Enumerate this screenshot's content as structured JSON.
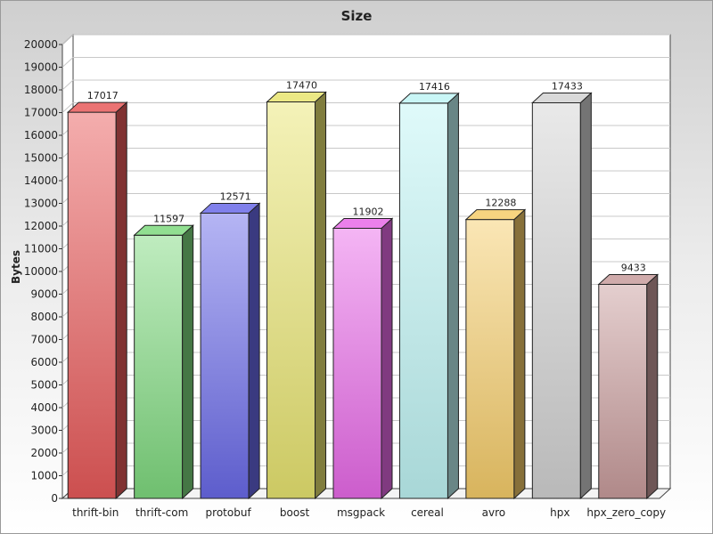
{
  "chart_data": {
    "type": "bar",
    "title": "Size",
    "xlabel": "",
    "ylabel": "Bytes",
    "ylim": [
      0,
      20000
    ],
    "ytick_step": 1000,
    "grid": true,
    "legend": "none",
    "style": "3d-bar",
    "categories": [
      "thrift-bin",
      "thrift-com",
      "protobuf",
      "boost",
      "msgpack",
      "cereal",
      "avro",
      "hpx",
      "hpx_zero_copy"
    ],
    "values": [
      17017,
      11597,
      12571,
      17470,
      11902,
      17416,
      12288,
      17433,
      9433
    ],
    "colors": [
      "#e85a5a",
      "#7ed97e",
      "#6a6ae8",
      "#e8e470",
      "#e86ae8",
      "#bff4f4",
      "#f5cc6a",
      "#d2d2d2",
      "#c89c9c"
    ]
  }
}
